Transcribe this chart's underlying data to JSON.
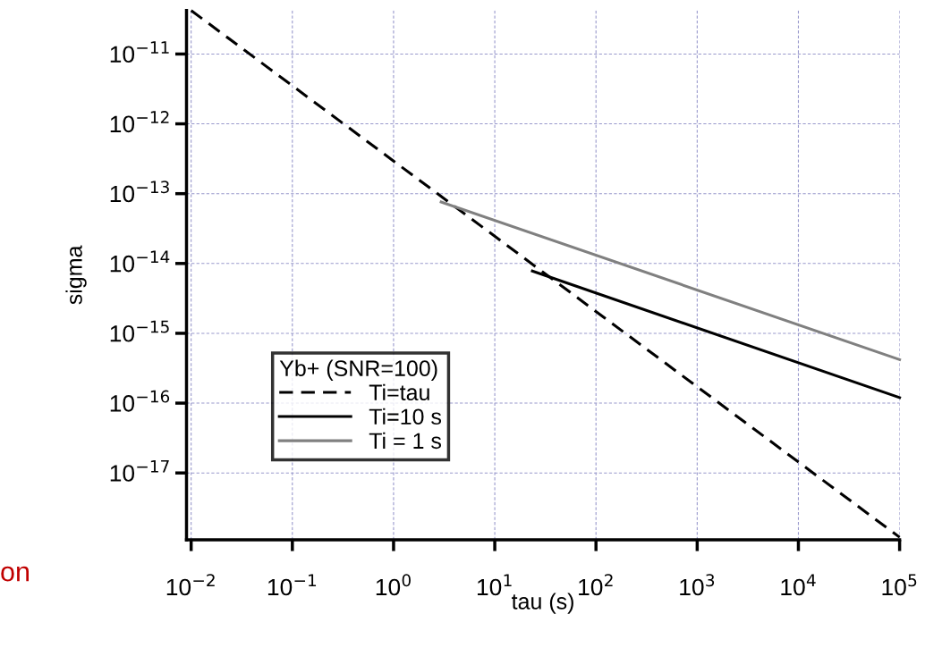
{
  "chart_data": {
    "type": "line",
    "xlabel": "tau (s)",
    "ylabel": "sigma",
    "legend_title": "Yb+ (SNR=100)",
    "log": "xy",
    "grid": true,
    "legend": "bottom left",
    "xlim": [
      0.009,
      100000
    ],
    "ylim": [
      1.1e-18,
      4.2e-11
    ],
    "xticks": [
      {
        "value": 0.01,
        "label": "10$^{−2}$"
      },
      {
        "value": 0.1,
        "label": "10$^{−1}$"
      },
      {
        "value": 1,
        "label": "10$^{0}$"
      },
      {
        "value": 10,
        "label": "10$^{1}$"
      },
      {
        "value": 100,
        "label": "10$^{2}$"
      },
      {
        "value": 1000,
        "label": "10$^{3}$"
      },
      {
        "value": 10000,
        "label": "10$^{4}$"
      },
      {
        "value": 100000,
        "label": "10$^{5}$"
      }
    ],
    "yticks": [
      {
        "value": 1e-17,
        "label": "10$^{−17}$"
      },
      {
        "value": 1e-16,
        "label": "10$^{−16}$"
      },
      {
        "value": 1e-15,
        "label": "10$^{−15}$"
      },
      {
        "value": 1e-14,
        "label": "10$^{−14}$"
      },
      {
        "value": 1e-13,
        "label": "10$^{−13}$"
      },
      {
        "value": 1e-12,
        "label": "10$^{−12}$"
      },
      {
        "value": 1e-11,
        "label": "10$^{−11}$"
      }
    ],
    "series": [
      {
        "name": "Ti=tau",
        "color": "#000000",
        "line_style": "dashed",
        "x": [
          0.01,
          100000
        ],
        "values": [
          4.2e-11,
          1.2e-18
        ]
      },
      {
        "name": "Ti=10 s",
        "color": "#000000",
        "line_style": "solid",
        "x": [
          23.5,
          100000
        ],
        "values": [
          7.8e-15,
          1.2e-16
        ]
      },
      {
        "name": "Ti = 1 s",
        "color": "#808080",
        "line_style": "solid",
        "x": [
          2.95,
          100000
        ],
        "values": [
          7.6e-14,
          4.2e-16
        ]
      }
    ],
    "annotations": [
      "on"
    ]
  }
}
